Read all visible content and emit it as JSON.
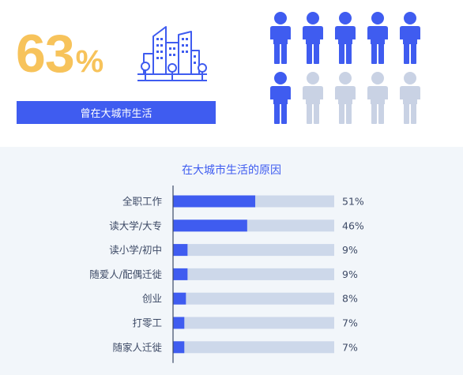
{
  "stat": {
    "value": "63",
    "unit": "%",
    "caption": "曾在大城市生活"
  },
  "people": {
    "total": 10,
    "highlighted": 6,
    "highlight_color": "#3f5cf0",
    "muted_color": "#c9d2e4"
  },
  "icons": [
    "city-buildings-icon",
    "person-icon"
  ],
  "colors": {
    "accent_orange": "#f7c35b",
    "accent_blue": "#3f5cf0",
    "track": "#cdd8ea"
  },
  "chart_data": {
    "type": "bar",
    "orientation": "horizontal",
    "title": "在大城市生活的原因",
    "categories": [
      "全职工作",
      "读大学/大专",
      "读小学/初中",
      "随爱人/配偶迁徙",
      "创业",
      "打零工",
      "随家人迁徙"
    ],
    "values": [
      51,
      46,
      9,
      9,
      8,
      7,
      7
    ],
    "value_labels": [
      "51%",
      "46%",
      "9%",
      "9%",
      "8%",
      "7%",
      "7%"
    ],
    "xlim": [
      0,
      100
    ],
    "unit": "%",
    "grid": false
  }
}
